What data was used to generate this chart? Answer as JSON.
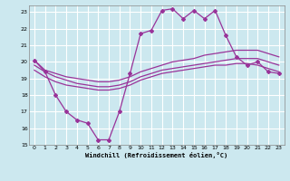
{
  "xlabel": "Windchill (Refroidissement éolien,°C)",
  "background_color": "#cce8ef",
  "grid_color": "#aaccdd",
  "line_color": "#993399",
  "xlim": [
    -0.5,
    23.5
  ],
  "ylim": [
    15,
    23.4
  ],
  "xticks": [
    0,
    1,
    2,
    3,
    4,
    5,
    6,
    7,
    8,
    9,
    10,
    11,
    12,
    13,
    14,
    15,
    16,
    17,
    18,
    19,
    20,
    21,
    22,
    23
  ],
  "yticks": [
    15,
    16,
    17,
    18,
    19,
    20,
    21,
    22,
    23
  ],
  "line1_x": [
    0,
    1,
    2,
    3,
    4,
    5,
    6,
    7,
    8,
    9,
    10,
    11,
    12,
    13,
    14,
    15,
    16,
    17,
    18,
    19,
    20,
    21,
    22,
    23
  ],
  "line1_y": [
    20.1,
    19.4,
    18.0,
    17.0,
    16.5,
    16.3,
    15.3,
    15.3,
    17.0,
    19.3,
    21.7,
    21.9,
    23.1,
    23.2,
    22.6,
    23.1,
    22.6,
    23.1,
    21.6,
    20.3,
    19.8,
    20.0,
    19.4,
    19.3
  ],
  "line2_x": [
    0,
    1,
    2,
    3,
    4,
    5,
    6,
    7,
    8,
    9,
    10,
    11,
    12,
    13,
    14,
    15,
    16,
    17,
    18,
    19,
    20,
    21,
    22,
    23
  ],
  "line2_y": [
    20.1,
    19.5,
    19.3,
    19.1,
    19.0,
    18.9,
    18.8,
    18.8,
    18.9,
    19.1,
    19.4,
    19.6,
    19.8,
    20.0,
    20.1,
    20.2,
    20.4,
    20.5,
    20.6,
    20.7,
    20.7,
    20.7,
    20.5,
    20.3
  ],
  "line3_x": [
    0,
    1,
    2,
    3,
    4,
    5,
    6,
    7,
    8,
    9,
    10,
    11,
    12,
    13,
    14,
    15,
    16,
    17,
    18,
    19,
    20,
    21,
    22,
    23
  ],
  "line3_y": [
    19.8,
    19.4,
    19.1,
    18.9,
    18.7,
    18.6,
    18.5,
    18.5,
    18.6,
    18.8,
    19.1,
    19.3,
    19.5,
    19.6,
    19.7,
    19.8,
    19.9,
    20.0,
    20.1,
    20.2,
    20.2,
    20.2,
    20.0,
    19.8
  ],
  "line4_x": [
    0,
    1,
    2,
    3,
    4,
    5,
    6,
    7,
    8,
    9,
    10,
    11,
    12,
    13,
    14,
    15,
    16,
    17,
    18,
    19,
    20,
    21,
    22,
    23
  ],
  "line4_y": [
    19.5,
    19.1,
    18.8,
    18.6,
    18.5,
    18.4,
    18.3,
    18.3,
    18.4,
    18.6,
    18.9,
    19.1,
    19.3,
    19.4,
    19.5,
    19.6,
    19.7,
    19.8,
    19.8,
    19.9,
    19.9,
    19.8,
    19.6,
    19.4
  ]
}
